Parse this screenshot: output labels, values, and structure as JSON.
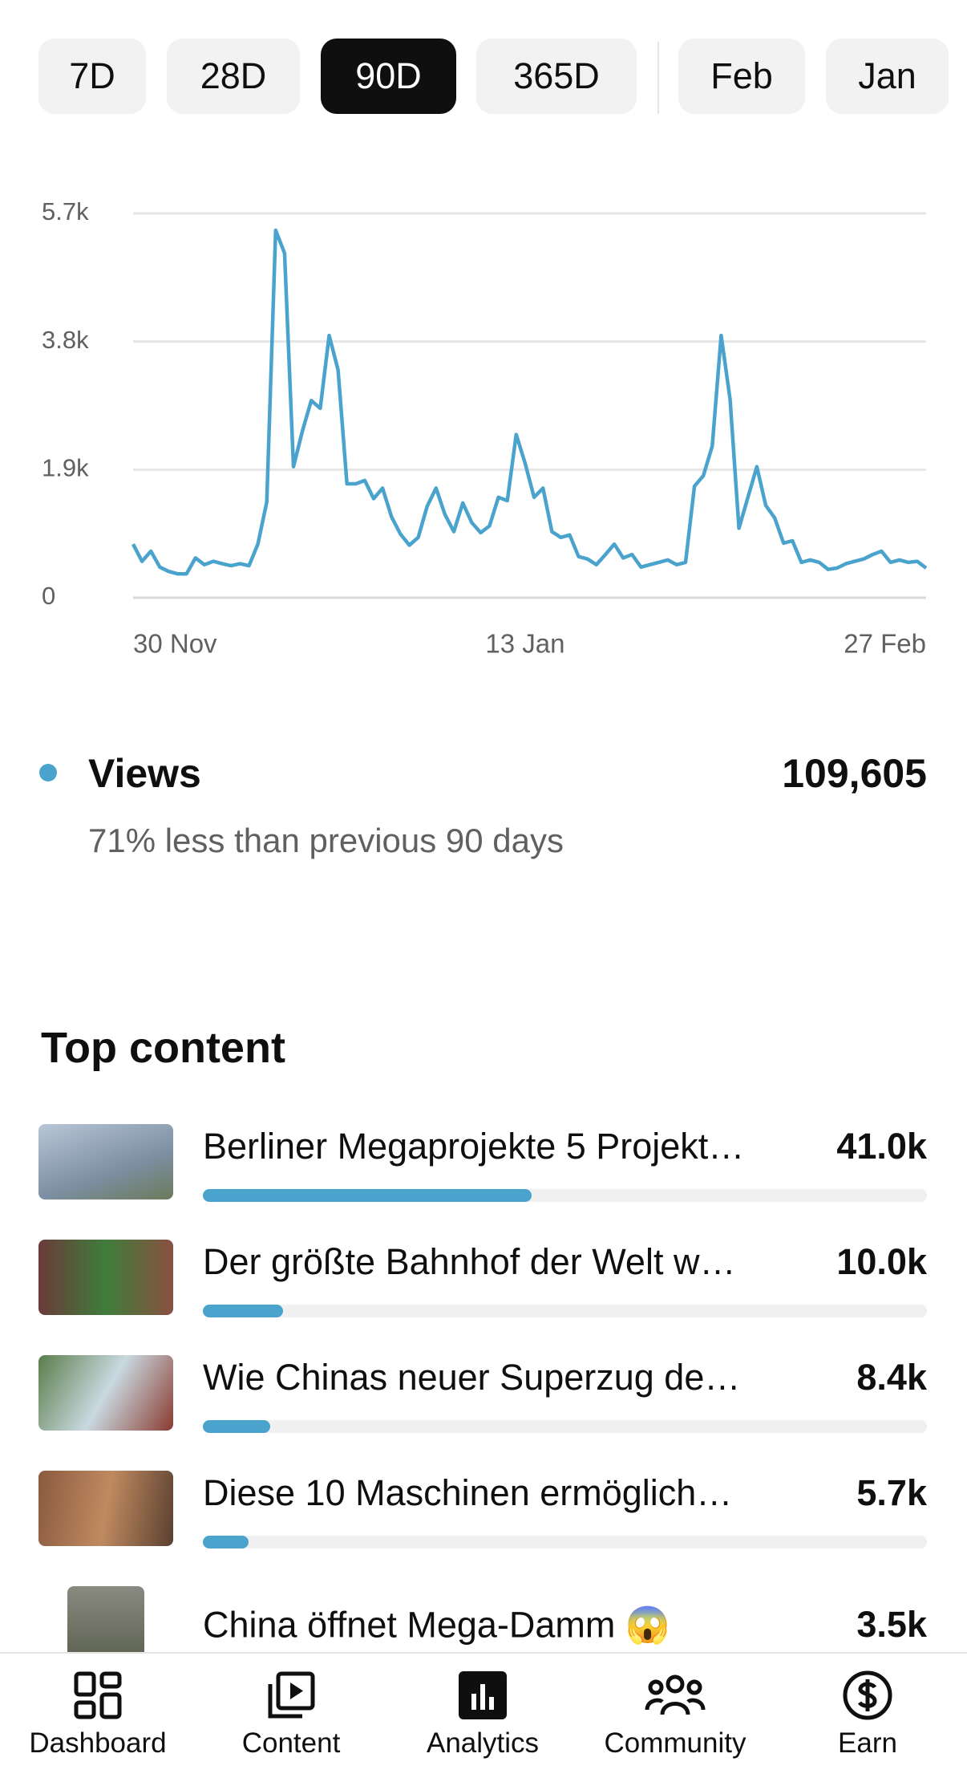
{
  "tabs": [
    "7D",
    "28D",
    "90D",
    "365D",
    "Feb",
    "Jan"
  ],
  "active_tab": 2,
  "chart_data": {
    "type": "line",
    "color": "#4aa3cc",
    "categories": [
      "30 Nov",
      null,
      null,
      null,
      null,
      null,
      null,
      null,
      null,
      null,
      null,
      null,
      null,
      null,
      null,
      null,
      null,
      null,
      null,
      null,
      null,
      null,
      null,
      null,
      null,
      null,
      null,
      null,
      null,
      null,
      null,
      null,
      null,
      null,
      null,
      null,
      null,
      null,
      null,
      null,
      null,
      null,
      null,
      null,
      "13 Jan",
      null,
      null,
      null,
      null,
      null,
      null,
      null,
      null,
      null,
      null,
      null,
      null,
      null,
      null,
      null,
      null,
      null,
      null,
      null,
      null,
      null,
      null,
      null,
      null,
      null,
      null,
      null,
      null,
      null,
      null,
      null,
      null,
      null,
      null,
      null,
      null,
      null,
      null,
      null,
      null,
      null,
      null,
      null,
      null,
      "27 Feb"
    ],
    "values": [
      795,
      540,
      690,
      455,
      390,
      355,
      355,
      590,
      490,
      540,
      505,
      475,
      505,
      475,
      795,
      1420,
      5450,
      5110,
      1945,
      2470,
      2925,
      2810,
      3890,
      3380,
      1690,
      1690,
      1740,
      1470,
      1625,
      1200,
      945,
      780,
      895,
      1355,
      1625,
      1235,
      980,
      1405,
      1115,
      965,
      1065,
      1490,
      1440,
      2420,
      1995,
      1490,
      1625,
      980,
      895,
      930,
      610,
      575,
      490,
      640,
      795,
      590,
      640,
      455,
      490,
      525,
      560,
      490,
      525,
      1655,
      1810,
      2250,
      3890,
      2945,
      1030,
      1490,
      1945,
      1370,
      1185,
      810,
      845,
      525,
      560,
      525,
      420,
      440,
      505,
      540,
      575,
      640,
      690,
      525,
      560,
      525,
      540,
      440
    ],
    "ylim": [
      0,
      5700
    ],
    "yticks": [
      0,
      {
        "value": 1900,
        "label": "1.9k"
      },
      {
        "value": 3800,
        "label": "3.8k"
      },
      {
        "value": 5700,
        "label": "5.7k"
      }
    ],
    "grid": true
  },
  "summary": {
    "metric": "Views",
    "total": "109,605",
    "comparison": "71% less than previous 90 days"
  },
  "top_content": {
    "title": "Top content",
    "items": [
      {
        "title": "Berliner Megaprojekte 5 Projekt…",
        "value": 41000,
        "value_label": "41.0k"
      },
      {
        "title": "Der größte Bahnhof der Welt w…",
        "value": 10000,
        "value_label": "10.0k"
      },
      {
        "title": "Wie Chinas neuer Superzug de…",
        "value": 8400,
        "value_label": "8.4k"
      },
      {
        "title": "Diese 10 Maschinen ermöglich…",
        "value": 5700,
        "value_label": "5.7k"
      },
      {
        "title": "China öffnet Mega-Damm 😱",
        "value": 3500,
        "value_label": "3.5k"
      }
    ]
  },
  "nav": [
    "Dashboard",
    "Content",
    "Analytics",
    "Community",
    "Earn"
  ],
  "active_nav": 2
}
